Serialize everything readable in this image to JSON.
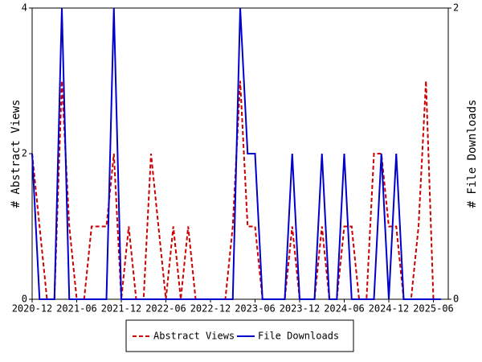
{
  "chart_data": {
    "type": "line",
    "x": [
      "2020-12",
      "2021-01",
      "2021-02",
      "2021-03",
      "2021-04",
      "2021-05",
      "2021-06",
      "2021-07",
      "2021-08",
      "2021-09",
      "2021-10",
      "2021-11",
      "2021-12",
      "2022-01",
      "2022-02",
      "2022-03",
      "2022-04",
      "2022-05",
      "2022-06",
      "2022-07",
      "2022-08",
      "2022-09",
      "2022-10",
      "2022-11",
      "2022-12",
      "2023-01",
      "2023-02",
      "2023-03",
      "2023-04",
      "2023-05",
      "2023-06",
      "2023-07",
      "2023-08",
      "2023-09",
      "2023-10",
      "2023-11",
      "2023-12",
      "2024-01",
      "2024-02",
      "2024-03",
      "2024-04",
      "2024-05",
      "2024-06",
      "2024-07",
      "2024-08",
      "2024-09",
      "2024-10",
      "2024-11",
      "2024-12",
      "2025-01",
      "2025-02",
      "2025-03",
      "2025-04",
      "2025-05",
      "2025-06",
      "2025-07"
    ],
    "xlim": [
      "2020-12",
      "2025-08"
    ],
    "xticks": [
      "2020-12",
      "2021-06",
      "2021-12",
      "2022-06",
      "2022-12",
      "2023-06",
      "2023-12",
      "2024-06",
      "2024-12",
      "2025-06"
    ],
    "ylabel": "# Abstract Views",
    "y2label": "# File Downloads",
    "ylim": [
      0,
      4
    ],
    "yticks": [
      0,
      2,
      4
    ],
    "y2lim": [
      0,
      2
    ],
    "y2ticks": [
      0,
      2
    ],
    "series": [
      {
        "name": "Abstract Views",
        "color": "#cc0000",
        "dashed": true,
        "values": [
          2,
          1,
          0,
          0,
          3,
          1,
          0,
          0,
          1,
          1,
          1,
          2,
          0,
          1,
          0,
          0,
          2,
          1,
          0,
          1,
          0,
          1,
          0,
          0,
          0,
          0,
          0,
          1,
          3,
          1,
          1,
          0,
          0,
          0,
          0,
          1,
          0,
          0,
          0,
          1,
          0,
          0,
          1,
          1,
          0,
          0,
          2,
          2,
          1,
          1,
          0,
          0,
          1,
          3,
          0,
          0
        ]
      },
      {
        "name": "File Downloads",
        "color": "#0000cc",
        "axis": "y2",
        "dashed": false,
        "values": [
          1,
          0,
          0,
          0,
          2,
          0,
          0,
          0,
          0,
          0,
          0,
          2,
          0,
          0,
          0,
          0,
          0,
          0,
          0,
          0,
          0,
          0,
          0,
          0,
          0,
          0,
          0,
          0,
          2,
          1,
          1,
          0,
          0,
          0,
          0,
          1,
          0,
          0,
          0,
          1,
          0,
          0,
          1,
          0,
          0,
          0,
          0,
          1,
          0,
          1,
          0,
          0,
          0,
          0,
          0,
          0
        ]
      }
    ]
  }
}
